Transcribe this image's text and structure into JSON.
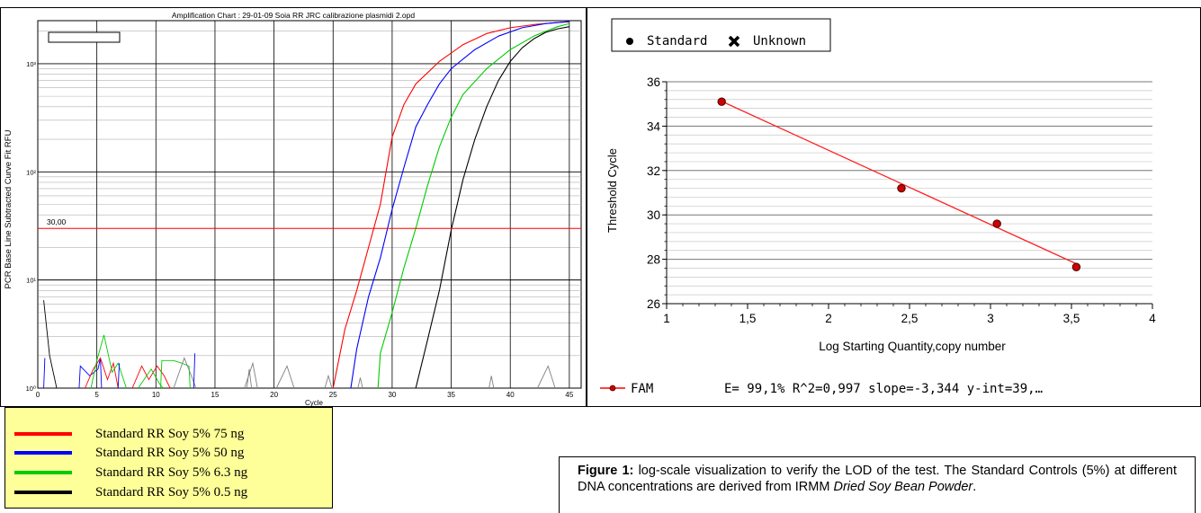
{
  "amplification_chart": {
    "title": "Amplification Chart : 29-01-09 Soia RR JRC calibrazione plasmidi 2.opd",
    "ylabel": "PCR Base Line Subtracted Curve Fit RFU",
    "xlabel": "Cycle",
    "threshold_label": "30,00",
    "x_ticks": [
      "0",
      "5",
      "10",
      "15",
      "20",
      "25",
      "30",
      "35",
      "40",
      "45"
    ],
    "y_ticks": [
      "10⁰",
      "10¹",
      "10²",
      "10³"
    ]
  },
  "standard_curve": {
    "legend": {
      "standard_label": "Standard",
      "unknown_label": "Unknown"
    },
    "ylabel": "Threshold Cycle",
    "xlabel": "Log Starting Quantity,copy number",
    "x_ticks": [
      "1",
      "1,5",
      "2",
      "2,5",
      "3",
      "3,5",
      "4"
    ],
    "y_ticks": [
      "26",
      "28",
      "30",
      "32",
      "34",
      "36"
    ],
    "series_label": "FAM",
    "stats": "E= 99,1% R^2=0,997 slope=-3,344 y-int=39,…"
  },
  "legend_box": {
    "items": [
      {
        "label": "Standard RR Soy 5% 75 ng",
        "color": "#ff0000"
      },
      {
        "label": "Standard RR Soy 5% 50 ng",
        "color": "#0000ff"
      },
      {
        "label": "Standard RR Soy 5% 6.3 ng",
        "color": "#00cc00"
      },
      {
        "label": "Standard RR Soy 5% 0.5 ng",
        "color": "#000000"
      }
    ]
  },
  "caption": {
    "label": "Figure 1:",
    "text": " log-scale visualization to verify the LOD of the test. The Standard Controls (5%) at different DNA concentrations are derived from IRMM ",
    "italic": "Dried Soy Bean Powder",
    "end": "."
  },
  "chart_data": [
    {
      "type": "line",
      "title": "Amplification Chart : 29-01-09 Soia RR JRC calibrazione plasmidi 2.opd",
      "xlabel": "Cycle",
      "ylabel": "PCR Base Line Subtracted Curve Fit RFU",
      "xlim": [
        0,
        46
      ],
      "ylim": [
        1,
        2500
      ],
      "y_scale": "log",
      "threshold": 30,
      "grid": true,
      "series": [
        {
          "name": "Standard RR Soy 5% 75 ng",
          "color": "#ff0000",
          "ct": 28.4,
          "x": [
            25,
            26,
            27,
            28,
            29,
            30,
            31,
            32,
            34,
            36,
            38,
            40,
            42,
            44,
            45
          ],
          "y": [
            1,
            3.5,
            8,
            20,
            50,
            210,
            420,
            650,
            1050,
            1500,
            1900,
            2150,
            2300,
            2400,
            2450
          ]
        },
        {
          "name": "Standard RR Soy 5% 50 ng",
          "color": "#0000ff",
          "ct": 29.6,
          "x": [
            26.5,
            27,
            28,
            29,
            30,
            31,
            32,
            33,
            34,
            35,
            37,
            39,
            41,
            43,
            45
          ],
          "y": [
            1,
            2.3,
            7,
            16,
            45,
            110,
            260,
            420,
            650,
            900,
            1350,
            1800,
            2150,
            2350,
            2450
          ]
        },
        {
          "name": "Standard RR Soy 5% 6.3 ng",
          "color": "#00cc00",
          "ct": 31.6,
          "x": [
            28.8,
            29,
            30,
            31,
            32,
            33,
            34,
            35,
            36,
            38,
            40,
            42,
            44,
            45
          ],
          "y": [
            1,
            2.1,
            5,
            13,
            30,
            75,
            170,
            320,
            520,
            900,
            1350,
            1800,
            2200,
            2350
          ]
        },
        {
          "name": "Standard RR Soy 5% 0.5 ng",
          "color": "#000000",
          "ct": 35.0,
          "x": [
            32,
            33,
            34,
            35,
            36,
            37,
            38,
            39,
            40,
            41,
            42,
            43,
            44,
            45
          ],
          "y": [
            1,
            2.8,
            8,
            29,
            85,
            200,
            400,
            700,
            1050,
            1400,
            1700,
            1950,
            2100,
            2200
          ]
        }
      ],
      "noise_traces": [
        {
          "color": "#000000",
          "x": [
            0.5,
            1,
            1.6
          ],
          "y": [
            6.5,
            2,
            1
          ]
        },
        {
          "color": "#0000ff",
          "x": [
            0.5,
            0.6
          ],
          "y": [
            1,
            1.9
          ]
        },
        {
          "color": "#0000ff",
          "x": [
            3.5,
            3.6,
            4.4,
            5.1,
            5.3,
            5.4
          ],
          "y": [
            1,
            1.6,
            1.3,
            1.5,
            1.9,
            1
          ]
        },
        {
          "color": "#ff0000",
          "x": [
            4.0,
            4.7,
            5.3,
            5.9,
            6.4,
            6.8
          ],
          "y": [
            1,
            1.5,
            1.9,
            1.2,
            1.7,
            1
          ]
        },
        {
          "color": "#00cc00",
          "x": [
            4.5,
            5,
            5.6,
            6.3,
            6.8,
            7.5
          ],
          "y": [
            1,
            1.8,
            3.1,
            1.4,
            1.7,
            1
          ]
        },
        {
          "color": "#ff0000",
          "x": [
            8,
            8.8,
            9.4,
            10.1,
            10.7,
            11.2
          ],
          "y": [
            1,
            1.6,
            1.2,
            1.6,
            1.3,
            1
          ]
        },
        {
          "color": "#00cc00",
          "x": [
            8.5,
            9.6,
            10.3,
            10.6
          ],
          "y": [
            1,
            1.5,
            1.1,
            1
          ]
        },
        {
          "color": "#00cc00",
          "x": [
            10.4,
            10.5,
            11.5,
            12.2,
            12.8,
            12.9
          ],
          "y": [
            1,
            1.8,
            1.8,
            1.7,
            1.6,
            1
          ]
        },
        {
          "color": "#808080",
          "x": [
            11.5,
            12.4,
            13,
            13.4
          ],
          "y": [
            1,
            1.9,
            1.3,
            1
          ]
        },
        {
          "color": "#0000ff",
          "x": [
            13.2,
            13.3
          ],
          "y": [
            1,
            2.1
          ]
        },
        {
          "color": "#0000ff",
          "x": [
            6.8,
            6.9
          ],
          "y": [
            1,
            1.7
          ]
        },
        {
          "color": "#808080",
          "x": [
            17.5,
            18.2,
            18.6
          ],
          "y": [
            1,
            1.7,
            1
          ]
        },
        {
          "color": "#808080",
          "x": [
            20.2,
            21.1,
            21.7
          ],
          "y": [
            1,
            1.6,
            1
          ]
        },
        {
          "color": "#808080",
          "x": [
            17.7,
            17.9,
            18.1
          ],
          "y": [
            1,
            1.5,
            1
          ]
        },
        {
          "color": "#808080",
          "x": [
            24.3,
            24.6,
            24.9
          ],
          "y": [
            1,
            1.3,
            1
          ]
        },
        {
          "color": "#808080",
          "x": [
            27.1,
            27.3,
            27.5
          ],
          "y": [
            1,
            1.25,
            1
          ]
        },
        {
          "color": "#808080",
          "x": [
            42.3,
            43.2,
            43.8
          ],
          "y": [
            1,
            1.6,
            1
          ]
        },
        {
          "color": "#808080",
          "x": [
            38.2,
            38.4,
            38.6
          ],
          "y": [
            1,
            1.3,
            1
          ]
        }
      ]
    },
    {
      "type": "scatter",
      "xlabel": "Log Starting Quantity,copy number",
      "ylabel": "Threshold Cycle",
      "xlim": [
        1,
        4
      ],
      "ylim": [
        26,
        36
      ],
      "grid": true,
      "points": {
        "name": "Standard",
        "x": [
          1.34,
          2.45,
          3.04,
          3.53
        ],
        "y": [
          35.1,
          31.2,
          29.6,
          27.65
        ]
      },
      "fit": {
        "name": "FAM",
        "slope": -3.344,
        "intercept": 39.6,
        "x_range": [
          1.34,
          3.53
        ]
      }
    }
  ]
}
